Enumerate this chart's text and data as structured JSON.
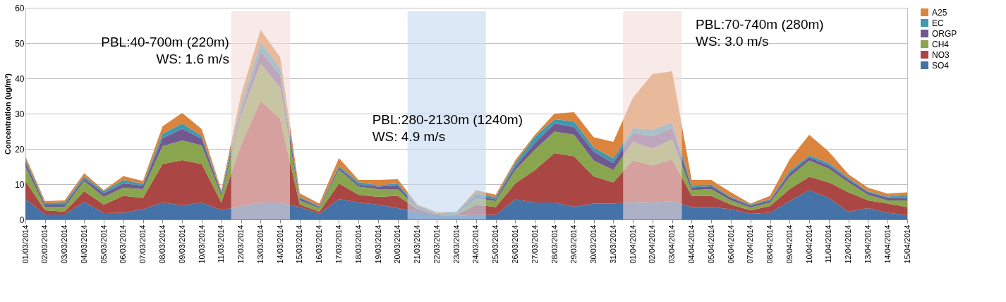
{
  "chart_data": {
    "type": "area",
    "stacked": true,
    "ylabel": "Concentration (ug/m³)",
    "categories": [
      "01/03/2014",
      "02/03/2014",
      "03/03/2014",
      "04/03/2014",
      "05/03/2014",
      "06/03/2014",
      "07/03/2014",
      "08/03/2014",
      "09/03/2014",
      "10/03/2014",
      "11/03/2014",
      "12/03/2014",
      "13/03/2014",
      "14/03/2014",
      "15/03/2014",
      "16/03/2014",
      "17/03/2014",
      "18/03/2014",
      "19/03/2014",
      "20/03/2014",
      "21/03/2014",
      "22/03/2014",
      "23/03/2014",
      "24/03/2014",
      "25/03/2014",
      "26/03/2014",
      "27/03/2014",
      "28/03/2014",
      "29/03/2014",
      "30/03/2014",
      "31/03/2014",
      "01/04/2014",
      "02/04/2014",
      "03/04/2014",
      "04/04/2014",
      "05/04/2014",
      "06/04/2014",
      "07/04/2014",
      "08/04/2014",
      "09/04/2014",
      "10/04/2014",
      "11/04/2014",
      "12/04/2014",
      "13/04/2014",
      "14/04/2014",
      "15/04/2014"
    ],
    "series": [
      {
        "name": "SO4",
        "color": "#4572a7",
        "values": [
          5.8,
          1.4,
          1.4,
          5,
          1.8,
          1.9,
          2.9,
          4.8,
          4,
          4.8,
          2.6,
          3.8,
          4.8,
          4.8,
          3.5,
          1.6,
          5.8,
          4.8,
          4.2,
          3.2,
          2.2,
          1.2,
          1,
          1.3,
          1.3,
          5.7,
          4.8,
          4.8,
          3.6,
          4.5,
          4.5,
          5,
          4.8,
          5.2,
          3.5,
          3.5,
          2.9,
          1.6,
          1.9,
          5.2,
          8.3,
          6.1,
          2.2,
          3.2,
          1.9,
          1.2
        ]
      },
      {
        "name": "NO3",
        "color": "#aa4643",
        "values": [
          5.1,
          1.2,
          0.8,
          3,
          2.4,
          4.8,
          3.2,
          10.9,
          12.8,
          10.9,
          2.2,
          17.2,
          28.8,
          23.7,
          0.7,
          0.6,
          4.4,
          2.2,
          2.2,
          3.5,
          0.7,
          0.2,
          0.3,
          2.9,
          2.2,
          4.5,
          9.2,
          14,
          14.3,
          7.7,
          6,
          11.7,
          10.5,
          11.8,
          3.2,
          3.2,
          1.3,
          1,
          1.9,
          3.4,
          3.8,
          4.4,
          5.5,
          2.2,
          2.6,
          2.3
        ]
      },
      {
        "name": "CH4",
        "color": "#89a54e",
        "values": [
          4.1,
          0.9,
          1.3,
          2.9,
          2.2,
          2.3,
          2.5,
          5.1,
          5.6,
          5.3,
          1.9,
          8.4,
          10.5,
          8.9,
          1.2,
          1,
          3.9,
          2.3,
          2.2,
          1.9,
          0.3,
          0.2,
          0.4,
          1.9,
          1.7,
          3.8,
          5.8,
          6.1,
          6.1,
          4.5,
          3.5,
          5.3,
          4.8,
          5.7,
          1.6,
          1.9,
          1.2,
          0.8,
          1,
          3.5,
          4.6,
          3.9,
          2.8,
          1.6,
          0.9,
          1.9
        ]
      },
      {
        "name": "ORGP",
        "color": "#71588f",
        "values": [
          1.3,
          0.7,
          0.7,
          0.7,
          1,
          1.2,
          1,
          2.2,
          3.3,
          1.9,
          0.7,
          1.3,
          3.6,
          3.5,
          0.7,
          0.3,
          0.6,
          0.6,
          0.7,
          1,
          0.3,
          0.1,
          0.2,
          0.6,
          0.5,
          1,
          1.9,
          2.3,
          2.2,
          2.5,
          2,
          2.6,
          3.5,
          3.2,
          0.8,
          0.8,
          0.7,
          0.5,
          0.6,
          1,
          0.9,
          0.9,
          0.8,
          0.7,
          0.7,
          0.7
        ]
      },
      {
        "name": "EC",
        "color": "#4198af",
        "values": [
          0.7,
          0.4,
          0.6,
          0.6,
          0.6,
          1,
          0.5,
          1.3,
          1.5,
          0.8,
          0.4,
          1.9,
          2.5,
          2,
          0.3,
          0.3,
          0.5,
          0.7,
          0.4,
          0.6,
          0.3,
          0.1,
          0.2,
          0.7,
          0.6,
          1,
          1.8,
          1.2,
          1.6,
          1.2,
          1.3,
          1.3,
          1.9,
          1.6,
          0.6,
          0.5,
          0.3,
          0.3,
          0.3,
          0.7,
          0.6,
          0.7,
          0.5,
          0.3,
          0.4,
          0.8
        ]
      },
      {
        "name": "A25",
        "color": "#db843d",
        "values": [
          0.9,
          0.6,
          0.6,
          0.9,
          0.3,
          1.1,
          0.8,
          2.1,
          3,
          1.9,
          0.5,
          2.6,
          3.5,
          3.1,
          1,
          0.7,
          2.2,
          0.6,
          1.5,
          1.2,
          0.4,
          0.2,
          0.1,
          0.9,
          0.7,
          0.8,
          0.5,
          1.6,
          2.6,
          2.9,
          4.7,
          8.6,
          15.7,
          14.5,
          1.5,
          1.3,
          1.3,
          0.3,
          1,
          3.2,
          5.8,
          3.2,
          1,
          1,
          0.8,
          0.8
        ]
      }
    ],
    "ylim": [
      0,
      60
    ],
    "yticks": [
      0,
      10,
      20,
      30,
      40,
      50,
      60
    ],
    "grid": "y",
    "legend": "right",
    "bands": [
      {
        "axis": "x",
        "from": "12/03/2014",
        "to": "14/03/2014",
        "color": "#f2dcdb",
        "label": "PBL:40-700m (220m)\nWS: 1.6 m/s"
      },
      {
        "axis": "x",
        "from": "21/03/2014",
        "to": "24/03/2014",
        "color": "#c6d9f1",
        "label": "PBL:280-2130m (1240m)\nWS: 4.9 m/s"
      },
      {
        "axis": "x",
        "from": "01/04/2014",
        "to": "03/04/2014",
        "color": "#f2dcdb",
        "label": "PBL:70-740m (280m)\nWS: 3.0 m/s"
      }
    ]
  }
}
